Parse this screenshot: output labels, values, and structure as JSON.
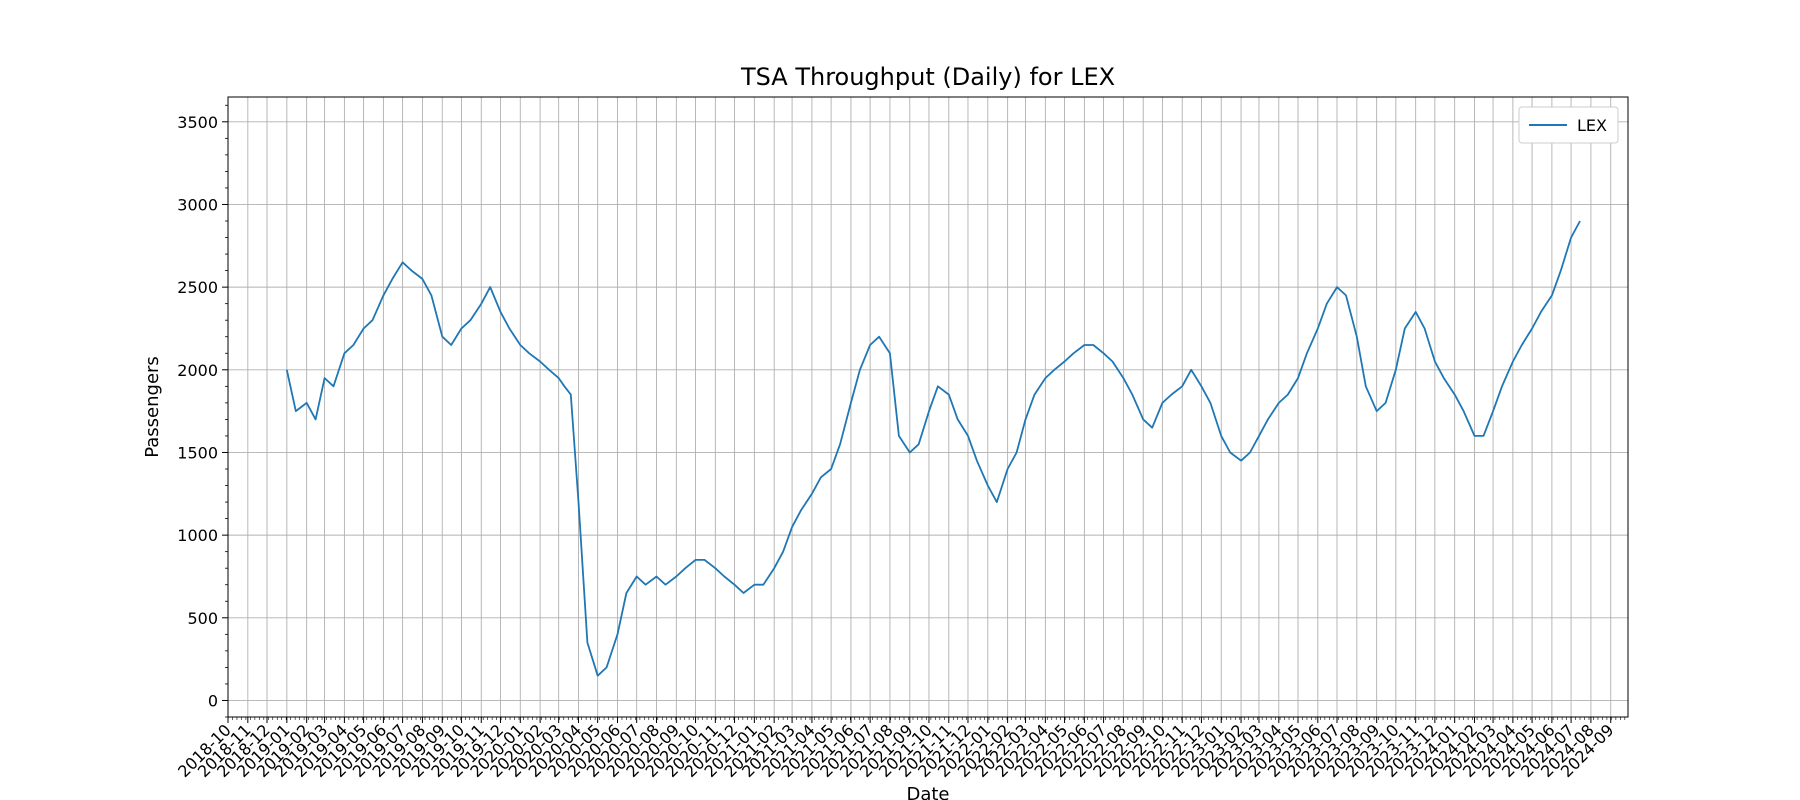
{
  "chart_data": {
    "type": "line",
    "title": "TSA Throughput (Daily) for LEX",
    "xlabel": "Date",
    "ylabel": "Passengers",
    "xlim": [
      "2018-10-01",
      "2024-09-28"
    ],
    "ylim": [
      -100,
      3650
    ],
    "yticks": [
      0,
      500,
      1000,
      1500,
      2000,
      2500,
      3000,
      3500
    ],
    "xticks": [
      "2018-10",
      "2018-11",
      "2018-12",
      "2019-01",
      "2019-02",
      "2019-03",
      "2019-04",
      "2019-05",
      "2019-06",
      "2019-07",
      "2019-08",
      "2019-09",
      "2019-10",
      "2019-11",
      "2019-12",
      "2020-01",
      "2020-02",
      "2020-03",
      "2020-04",
      "2020-05",
      "2020-06",
      "2020-07",
      "2020-08",
      "2020-09",
      "2020-10",
      "2020-11",
      "2020-12",
      "2021-01",
      "2021-02",
      "2021-03",
      "2021-04",
      "2021-05",
      "2021-06",
      "2021-07",
      "2021-08",
      "2021-09",
      "2021-10",
      "2021-11",
      "2021-12",
      "2022-01",
      "2022-02",
      "2022-03",
      "2022-04",
      "2022-05",
      "2022-06",
      "2022-07",
      "2022-08",
      "2022-09",
      "2022-10",
      "2022-11",
      "2022-12",
      "2023-01",
      "2023-02",
      "2023-03",
      "2023-04",
      "2023-05",
      "2023-06",
      "2023-07",
      "2023-08",
      "2023-09",
      "2023-10",
      "2023-11",
      "2023-12",
      "2024-01",
      "2024-02",
      "2024-03",
      "2024-04",
      "2024-05",
      "2024-06",
      "2024-07",
      "2024-08",
      "2024-09"
    ],
    "grid": true,
    "legend_position": "top-right",
    "series": [
      {
        "name": "LEX",
        "color": "#1f77b4",
        "x": [
          "2019-01-01",
          "2019-01-15",
          "2019-02-01",
          "2019-02-15",
          "2019-03-01",
          "2019-03-15",
          "2019-04-01",
          "2019-04-15",
          "2019-05-01",
          "2019-05-15",
          "2019-06-01",
          "2019-06-15",
          "2019-07-01",
          "2019-07-15",
          "2019-08-01",
          "2019-08-15",
          "2019-09-01",
          "2019-09-15",
          "2019-10-01",
          "2019-10-15",
          "2019-11-01",
          "2019-11-15",
          "2019-12-01",
          "2019-12-15",
          "2020-01-01",
          "2020-01-15",
          "2020-02-01",
          "2020-02-15",
          "2020-03-01",
          "2020-03-10",
          "2020-03-20",
          "2020-04-01",
          "2020-04-15",
          "2020-05-01",
          "2020-05-15",
          "2020-06-01",
          "2020-06-15",
          "2020-07-01",
          "2020-07-15",
          "2020-08-01",
          "2020-08-15",
          "2020-09-01",
          "2020-09-15",
          "2020-10-01",
          "2020-10-15",
          "2020-11-01",
          "2020-11-15",
          "2020-12-01",
          "2020-12-15",
          "2021-01-01",
          "2021-01-15",
          "2021-02-01",
          "2021-02-15",
          "2021-03-01",
          "2021-03-15",
          "2021-04-01",
          "2021-04-15",
          "2021-05-01",
          "2021-05-15",
          "2021-06-01",
          "2021-06-15",
          "2021-07-01",
          "2021-07-15",
          "2021-08-01",
          "2021-08-15",
          "2021-09-01",
          "2021-09-15",
          "2021-10-01",
          "2021-10-15",
          "2021-11-01",
          "2021-11-15",
          "2021-12-01",
          "2021-12-15",
          "2022-01-01",
          "2022-01-15",
          "2022-02-01",
          "2022-02-15",
          "2022-03-01",
          "2022-03-15",
          "2022-04-01",
          "2022-04-15",
          "2022-05-01",
          "2022-05-15",
          "2022-06-01",
          "2022-06-15",
          "2022-07-01",
          "2022-07-15",
          "2022-08-01",
          "2022-08-15",
          "2022-09-01",
          "2022-09-15",
          "2022-10-01",
          "2022-10-15",
          "2022-11-01",
          "2022-11-15",
          "2022-12-01",
          "2022-12-15",
          "2023-01-01",
          "2023-01-15",
          "2023-02-01",
          "2023-02-15",
          "2023-03-01",
          "2023-03-15",
          "2023-04-01",
          "2023-04-15",
          "2023-05-01",
          "2023-05-15",
          "2023-06-01",
          "2023-06-15",
          "2023-07-01",
          "2023-07-15",
          "2023-08-01",
          "2023-08-15",
          "2023-09-01",
          "2023-09-15",
          "2023-10-01",
          "2023-10-15",
          "2023-11-01",
          "2023-11-15",
          "2023-12-01",
          "2023-12-15",
          "2024-01-01",
          "2024-01-15",
          "2024-02-01",
          "2024-02-15",
          "2024-03-01",
          "2024-03-15",
          "2024-04-01",
          "2024-04-15",
          "2024-05-01",
          "2024-05-15",
          "2024-06-01",
          "2024-06-15",
          "2024-07-01",
          "2024-07-15"
        ],
        "y": [
          2000,
          1750,
          1800,
          1700,
          1950,
          1900,
          2100,
          2150,
          2250,
          2300,
          2450,
          2550,
          2650,
          2600,
          2550,
          2450,
          2200,
          2150,
          2250,
          2300,
          2400,
          2500,
          2350,
          2250,
          2150,
          2100,
          2050,
          2000,
          1950,
          1900,
          1850,
          1200,
          350,
          150,
          200,
          400,
          650,
          750,
          700,
          750,
          700,
          750,
          800,
          850,
          850,
          800,
          750,
          700,
          650,
          700,
          700,
          800,
          900,
          1050,
          1150,
          1250,
          1350,
          1400,
          1550,
          1800,
          2000,
          2150,
          2200,
          2100,
          1600,
          1500,
          1550,
          1750,
          1900,
          1850,
          1700,
          1600,
          1450,
          1300,
          1200,
          1400,
          1500,
          1700,
          1850,
          1950,
          2000,
          2050,
          2100,
          2150,
          2150,
          2100,
          2050,
          1950,
          1850,
          1700,
          1650,
          1800,
          1850,
          1900,
          2000,
          1900,
          1800,
          1600,
          1500,
          1450,
          1500,
          1600,
          1700,
          1800,
          1850,
          1950,
          2100,
          2250,
          2400,
          2500,
          2450,
          2200,
          1900,
          1750,
          1800,
          2000,
          2250,
          2350,
          2250,
          2050,
          1950,
          1850,
          1750,
          1600,
          1600,
          1750,
          1900,
          2050,
          2150,
          2250,
          2350,
          2450,
          2600,
          2800,
          2900
        ]
      }
    ]
  }
}
